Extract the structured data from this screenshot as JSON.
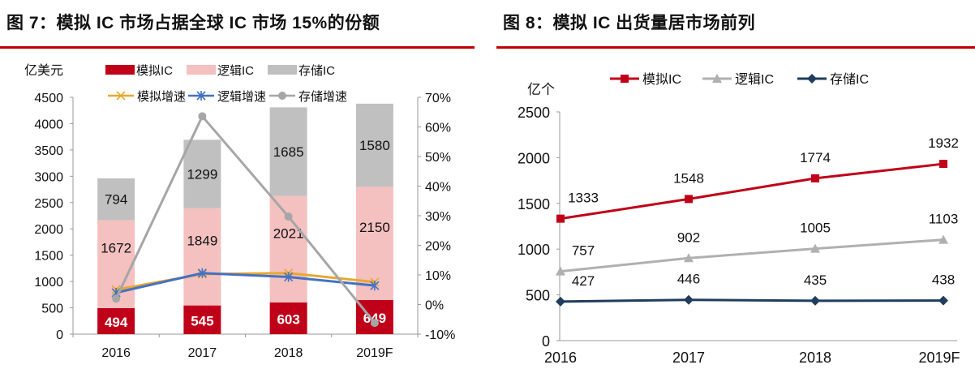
{
  "figures": [
    {
      "title": "图 7：模拟 IC 市场占据全球 IC 市场 15%的份额"
    },
    {
      "title": "图 8：模拟 IC 出货量居市场前列"
    }
  ],
  "chart_data": [
    {
      "type": "bar",
      "stacked": true,
      "categories": [
        "2016",
        "2017",
        "2018",
        "2019F"
      ],
      "ylabel": "亿美元",
      "ylim": [
        0,
        4500
      ],
      "yticks": [
        "0",
        "500",
        "1000",
        "1500",
        "2000",
        "2500",
        "3000",
        "3500",
        "4000",
        "4500"
      ],
      "y2lim": [
        -10,
        70
      ],
      "y2ticks": [
        "-10%",
        "0%",
        "10%",
        "20%",
        "30%",
        "40%",
        "50%",
        "60%",
        "70%"
      ],
      "grid": false,
      "legend": "top",
      "series": [
        {
          "name": "模拟IC",
          "values": [
            494,
            545,
            603,
            649
          ],
          "color": "#c00018"
        },
        {
          "name": "逻辑IC",
          "values": [
            1672,
            1849,
            2021,
            2150
          ],
          "color": "#f4c0c0"
        },
        {
          "name": "存储IC",
          "values": [
            794,
            1299,
            1685,
            1580
          ],
          "color": "#c0c0c0"
        }
      ],
      "line_series": [
        {
          "name": "模拟增速",
          "values": [
            5,
            10.3,
            10.6,
            7.6
          ],
          "color": "#e8a830",
          "marker": "x"
        },
        {
          "name": "逻辑增速",
          "values": [
            4,
            10.6,
            9.3,
            6.4
          ],
          "color": "#4472c4",
          "marker": "asterisk"
        },
        {
          "name": "存储增速",
          "values": [
            2,
            63.6,
            29.7,
            -6.2
          ],
          "color": "#a6a6a6",
          "marker": "circle"
        }
      ]
    },
    {
      "type": "line",
      "categories": [
        "2016",
        "2017",
        "2018",
        "2019F"
      ],
      "ylabel": "亿个",
      "ylim": [
        0,
        2500
      ],
      "yticks": [
        "0",
        "500",
        "1000",
        "1500",
        "2000",
        "2500"
      ],
      "grid": false,
      "legend": "top",
      "series": [
        {
          "name": "模拟IC",
          "values": [
            1333,
            1548,
            1774,
            1932
          ],
          "color": "#c00018",
          "marker": "square"
        },
        {
          "name": "逻辑IC",
          "values": [
            757,
            902,
            1005,
            1103
          ],
          "color": "#b0b0b0",
          "marker": "triangle"
        },
        {
          "name": "存储IC",
          "values": [
            427,
            446,
            435,
            438
          ],
          "color": "#1f3d5c",
          "marker": "diamond"
        }
      ]
    }
  ]
}
